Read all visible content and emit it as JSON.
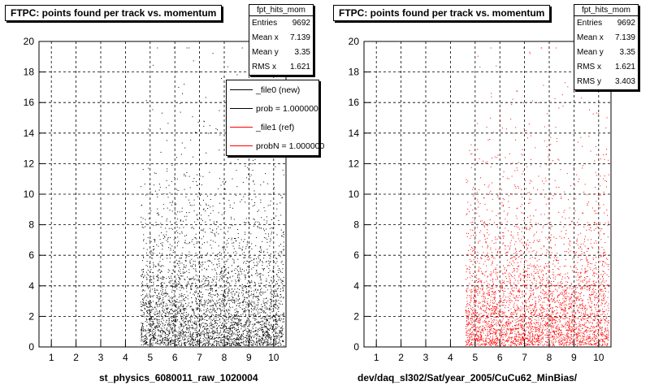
{
  "chart_data": [
    {
      "type": "scatter",
      "title": "FTPC: points found per track vs. momentum",
      "xlabel": "st_physics_6080011_raw_1020004",
      "ylabel": "",
      "xlim": [
        0.5,
        10.5
      ],
      "ylim": [
        0,
        20
      ],
      "x_ticks": [
        1,
        2,
        3,
        4,
        5,
        6,
        7,
        8,
        9,
        10
      ],
      "y_ticks": [
        0,
        2,
        4,
        6,
        8,
        10,
        12,
        14,
        16,
        18,
        20
      ],
      "grid": true,
      "marker_color": "#000000",
      "points_x_range": [
        4.6,
        10.4
      ],
      "points_y_range": [
        0.1,
        19.6
      ],
      "stats": {
        "name": "fpt_hits_mom",
        "rows": [
          {
            "label": "Entries",
            "value": "9692"
          },
          {
            "label": "Mean x",
            "value": "7.139"
          },
          {
            "label": "Mean y",
            "value": "3.35"
          },
          {
            "label": "RMS x",
            "value": "1.621"
          }
        ]
      },
      "legend": {
        "placement": "top-right",
        "entries": [
          {
            "label": "_file0 (new)",
            "color": "#000000"
          },
          {
            "label": "prob = 1.000000",
            "color": "#000000"
          },
          {
            "label": "_file1 (ref)",
            "color": "#ff0000"
          },
          {
            "label": "probN = 1.000000",
            "color": "#ff0000"
          }
        ]
      }
    },
    {
      "type": "scatter",
      "title": "FTPC: points found per track vs. momentum",
      "xlabel": "dev/daq_sl302/Sat/year_2005/CuCu62_MinBias/",
      "ylabel": "",
      "xlim": [
        0.5,
        10.5
      ],
      "ylim": [
        0,
        20
      ],
      "x_ticks": [
        1,
        2,
        3,
        4,
        5,
        6,
        7,
        8,
        9,
        10
      ],
      "y_ticks": [
        0,
        2,
        4,
        6,
        8,
        10,
        12,
        14,
        16,
        18,
        20
      ],
      "grid": true,
      "marker_color": "#ff0000",
      "points_x_range": [
        4.6,
        10.4
      ],
      "points_y_range": [
        0.1,
        19.6
      ],
      "stats": {
        "name": "fpt_hits_mom",
        "rows": [
          {
            "label": "Entries",
            "value": "9692"
          },
          {
            "label": "Mean x",
            "value": "7.139"
          },
          {
            "label": "Mean y",
            "value": "3.35"
          },
          {
            "label": "RMS x",
            "value": "1.621"
          },
          {
            "label": "RMS y",
            "value": "3.403"
          }
        ]
      }
    }
  ]
}
